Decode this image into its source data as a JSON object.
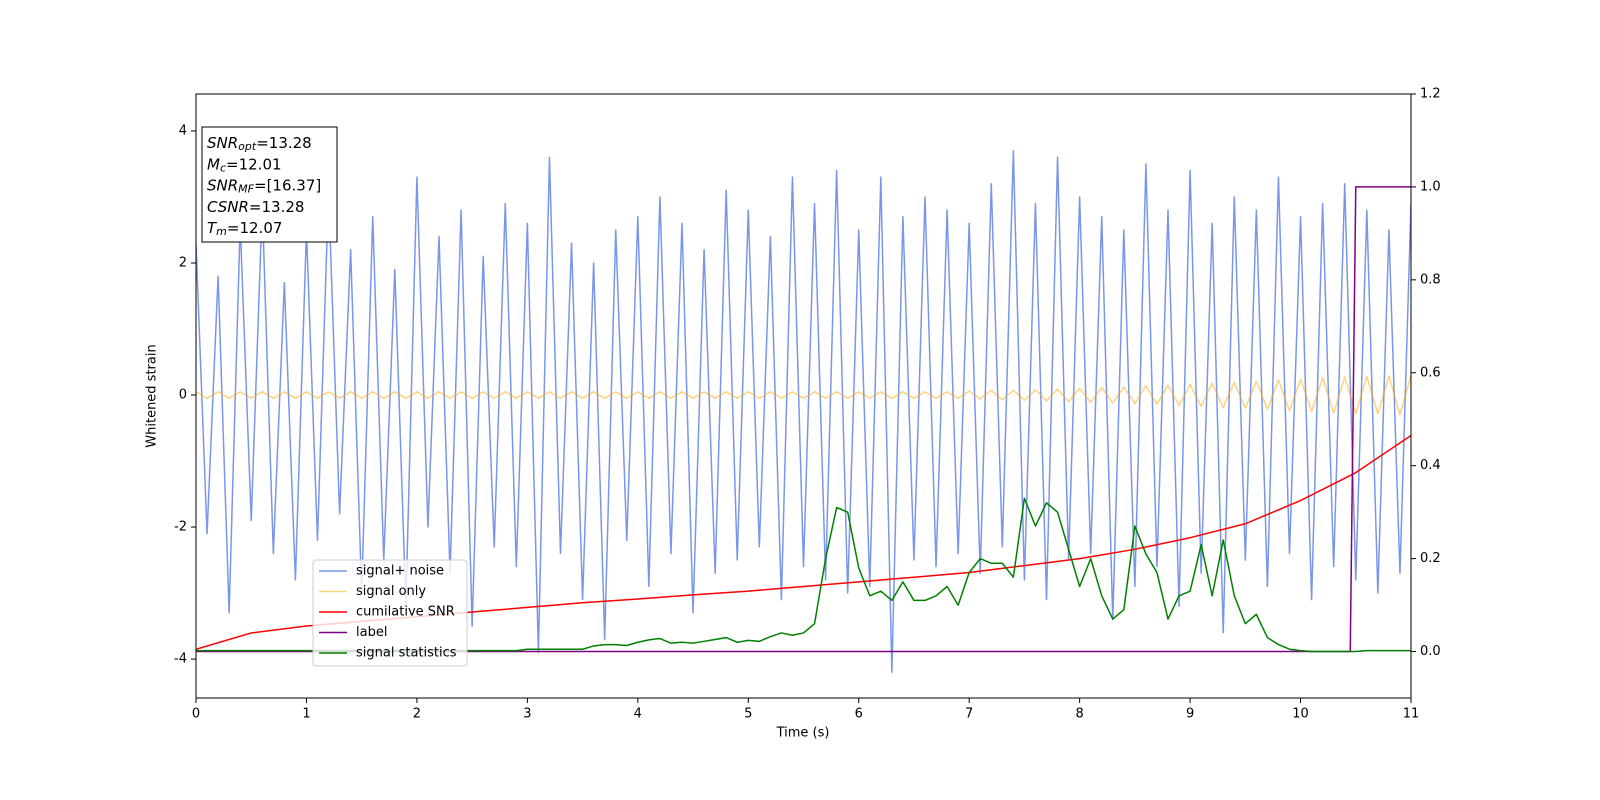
{
  "chart_data": {
    "type": "line",
    "xlabel": "Time (s)",
    "ylabel": "Whitened strain",
    "xlim": [
      0,
      11
    ],
    "xticks": [
      0,
      1,
      2,
      3,
      4,
      5,
      6,
      7,
      8,
      9,
      10,
      11
    ],
    "ylim": [
      -4.59,
      4.56
    ],
    "yticks": [
      -4,
      -2,
      0,
      2,
      4
    ],
    "y2lim": [
      -0.1,
      1.2
    ],
    "y2ticks": [
      {
        "value": 0,
        "label": "0.0"
      },
      {
        "value": 0.2,
        "label": "0.2"
      },
      {
        "value": 0.4,
        "label": "0.4"
      },
      {
        "value": 0.6,
        "label": "0.6"
      },
      {
        "value": 0.8,
        "label": "0.8"
      },
      {
        "value": 1.0,
        "label": "1.0"
      },
      {
        "value": 1.2,
        "label": "1.2"
      }
    ],
    "legend_loc": "lower left",
    "annotation": [
      {
        "main": "SNR",
        "sub": "opt",
        "value": "=13.28"
      },
      {
        "main": "M",
        "sub": "c",
        "value": "=12.01"
      },
      {
        "main": "SNR",
        "sub": "MF",
        "value": "=[16.37]"
      },
      {
        "main": "CSNR",
        "value": "=13.28"
      },
      {
        "main": "T",
        "sub": "m",
        "value": "=12.07"
      }
    ],
    "x": [
      0,
      0.1,
      0.2,
      0.3,
      0.4,
      0.5,
      0.6,
      0.7,
      0.8,
      0.9,
      1,
      1.1,
      1.2,
      1.3,
      1.4,
      1.5,
      1.6,
      1.7,
      1.8,
      1.9,
      2,
      2.1,
      2.2,
      2.3,
      2.4,
      2.5,
      2.6,
      2.7,
      2.8,
      2.9,
      3,
      3.1,
      3.2,
      3.3,
      3.4,
      3.5,
      3.6,
      3.7,
      3.8,
      3.9,
      4,
      4.1,
      4.2,
      4.3,
      4.4,
      4.5,
      4.6,
      4.7,
      4.8,
      4.9,
      5,
      5.1,
      5.2,
      5.3,
      5.4,
      5.5,
      5.6,
      5.7,
      5.8,
      5.9,
      6,
      6.1,
      6.2,
      6.3,
      6.4,
      6.5,
      6.6,
      6.7,
      6.8,
      6.9,
      7,
      7.1,
      7.2,
      7.3,
      7.4,
      7.5,
      7.6,
      7.7,
      7.8,
      7.9,
      8,
      8.1,
      8.2,
      8.3,
      8.4,
      8.5,
      8.6,
      8.7,
      8.8,
      8.9,
      9,
      9.1,
      9.2,
      9.3,
      9.4,
      9.5,
      9.6,
      9.7,
      9.8,
      9.9,
      10,
      10.1,
      10.2,
      10.3,
      10.4,
      10.5,
      10.6,
      10.7,
      10.8,
      10.9,
      11
    ],
    "series": [
      {
        "name": "signal+ noise",
        "color": "#4169e1",
        "opacity": 0.7,
        "axis": "y",
        "values": [
          2.3,
          -2.1,
          1.8,
          -3.3,
          2.6,
          -1.9,
          2.9,
          -2.4,
          1.7,
          -2.8,
          2.5,
          -2.2,
          3.1,
          -1.8,
          2.2,
          -3.0,
          2.7,
          -2.5,
          1.9,
          -3.2,
          3.3,
          -2.0,
          2.4,
          -2.7,
          2.8,
          -3.5,
          2.1,
          -2.3,
          2.9,
          -2.6,
          2.6,
          -3.9,
          3.6,
          -2.4,
          2.3,
          -3.1,
          2.0,
          -3.7,
          2.5,
          -2.2,
          2.7,
          -2.9,
          3.0,
          -2.4,
          2.6,
          -3.3,
          2.2,
          -2.7,
          3.1,
          -2.5,
          2.8,
          -2.3,
          2.4,
          -3.1,
          3.3,
          -2.6,
          2.9,
          -2.8,
          3.4,
          -3.0,
          2.5,
          -2.9,
          3.3,
          -4.2,
          2.7,
          -2.5,
          3.0,
          -2.6,
          2.8,
          -2.4,
          2.6,
          -2.7,
          3.2,
          -2.3,
          3.7,
          -2.8,
          2.9,
          -3.1,
          3.6,
          -2.5,
          3.0,
          -2.4,
          2.7,
          -3.4,
          2.5,
          -2.9,
          3.5,
          -2.6,
          2.8,
          -3.2,
          3.4,
          -2.7,
          2.6,
          -3.6,
          3.0,
          -2.5,
          2.8,
          -2.9,
          3.3,
          -2.4,
          2.7,
          -3.1,
          2.9,
          -2.6,
          3.2,
          -2.8,
          2.8,
          -3.0,
          2.5,
          -2.7,
          2.9
        ]
      },
      {
        "name": "signal only",
        "color": "#ffa500",
        "opacity": 0.5,
        "axis": "y",
        "values": [
          0.05,
          -0.05,
          0.05,
          -0.05,
          0.05,
          -0.05,
          0.05,
          -0.05,
          0.05,
          -0.05,
          0.05,
          -0.05,
          0.05,
          -0.05,
          0.05,
          -0.05,
          0.05,
          -0.05,
          0.05,
          -0.05,
          0.05,
          -0.05,
          0.05,
          -0.05,
          0.05,
          -0.05,
          0.05,
          -0.05,
          0.05,
          -0.05,
          0.05,
          -0.05,
          0.05,
          -0.05,
          0.05,
          -0.05,
          0.05,
          -0.05,
          0.05,
          -0.05,
          0.05,
          -0.05,
          0.05,
          -0.05,
          0.05,
          -0.05,
          0.05,
          -0.05,
          0.05,
          -0.05,
          0.05,
          -0.05,
          0.05,
          -0.05,
          0.05,
          -0.05,
          0.05,
          -0.05,
          0.05,
          -0.05,
          0.05,
          -0.05,
          0.05,
          -0.05,
          0.05,
          -0.05,
          0.05,
          -0.05,
          0.05,
          -0.05,
          0.06,
          -0.06,
          0.07,
          -0.07,
          0.07,
          -0.08,
          0.08,
          -0.09,
          0.09,
          -0.1,
          0.1,
          -0.11,
          0.11,
          -0.12,
          0.12,
          -0.13,
          0.14,
          -0.14,
          0.15,
          -0.16,
          0.16,
          -0.17,
          0.18,
          -0.19,
          0.19,
          -0.2,
          0.21,
          -0.22,
          0.23,
          -0.24,
          0.24,
          -0.25,
          0.26,
          -0.27,
          0.27,
          -0.28,
          0.28,
          -0.29,
          0.29,
          -0.3,
          0.3
        ]
      },
      {
        "name": "cumilative SNR",
        "color": "#ff0000",
        "axis": "y2",
        "x": [
          0,
          0.5,
          1,
          1.5,
          2,
          2.5,
          3,
          3.5,
          4,
          4.5,
          5,
          5.5,
          6,
          6.5,
          7,
          7.5,
          8,
          8.5,
          9,
          9.5,
          10,
          10.5,
          11
        ],
        "values": [
          0.005,
          0.04,
          0.055,
          0.065,
          0.075,
          0.085,
          0.095,
          0.105,
          0.113,
          0.122,
          0.13,
          0.14,
          0.15,
          0.16,
          0.17,
          0.185,
          0.2,
          0.22,
          0.245,
          0.275,
          0.325,
          0.385,
          0.465
        ]
      },
      {
        "name": "label",
        "color": "#800080",
        "axis": "y2",
        "x": [
          0,
          10.45,
          10.5,
          11
        ],
        "values": [
          0,
          0,
          1,
          1
        ]
      },
      {
        "name": "signal statistics",
        "color": "#008000",
        "axis": "y2",
        "values": [
          0.002,
          0.002,
          0.002,
          0.002,
          0.002,
          0.002,
          0.002,
          0.002,
          0.002,
          0.002,
          0.002,
          0.002,
          0.002,
          0.002,
          0.002,
          0.002,
          0.002,
          0.002,
          0.002,
          0.002,
          0.002,
          0.002,
          0.002,
          0.002,
          0.002,
          0.002,
          0.002,
          0.002,
          0.002,
          0.002,
          0.005,
          0.005,
          0.005,
          0.005,
          0.005,
          0.005,
          0.012,
          0.015,
          0.015,
          0.013,
          0.02,
          0.025,
          0.028,
          0.018,
          0.02,
          0.018,
          0.022,
          0.026,
          0.03,
          0.02,
          0.024,
          0.022,
          0.032,
          0.04,
          0.035,
          0.04,
          0.06,
          0.2,
          0.31,
          0.3,
          0.18,
          0.12,
          0.13,
          0.11,
          0.15,
          0.11,
          0.11,
          0.12,
          0.14,
          0.1,
          0.17,
          0.2,
          0.19,
          0.19,
          0.16,
          0.33,
          0.27,
          0.32,
          0.3,
          0.22,
          0.14,
          0.2,
          0.12,
          0.07,
          0.09,
          0.27,
          0.21,
          0.17,
          0.07,
          0.12,
          0.13,
          0.23,
          0.12,
          0.24,
          0.12,
          0.06,
          0.08,
          0.03,
          0.015,
          0.005,
          0.002,
          0,
          0,
          0,
          0,
          0,
          0.002,
          0.002,
          0.002,
          0.002,
          0.002
        ]
      }
    ]
  }
}
